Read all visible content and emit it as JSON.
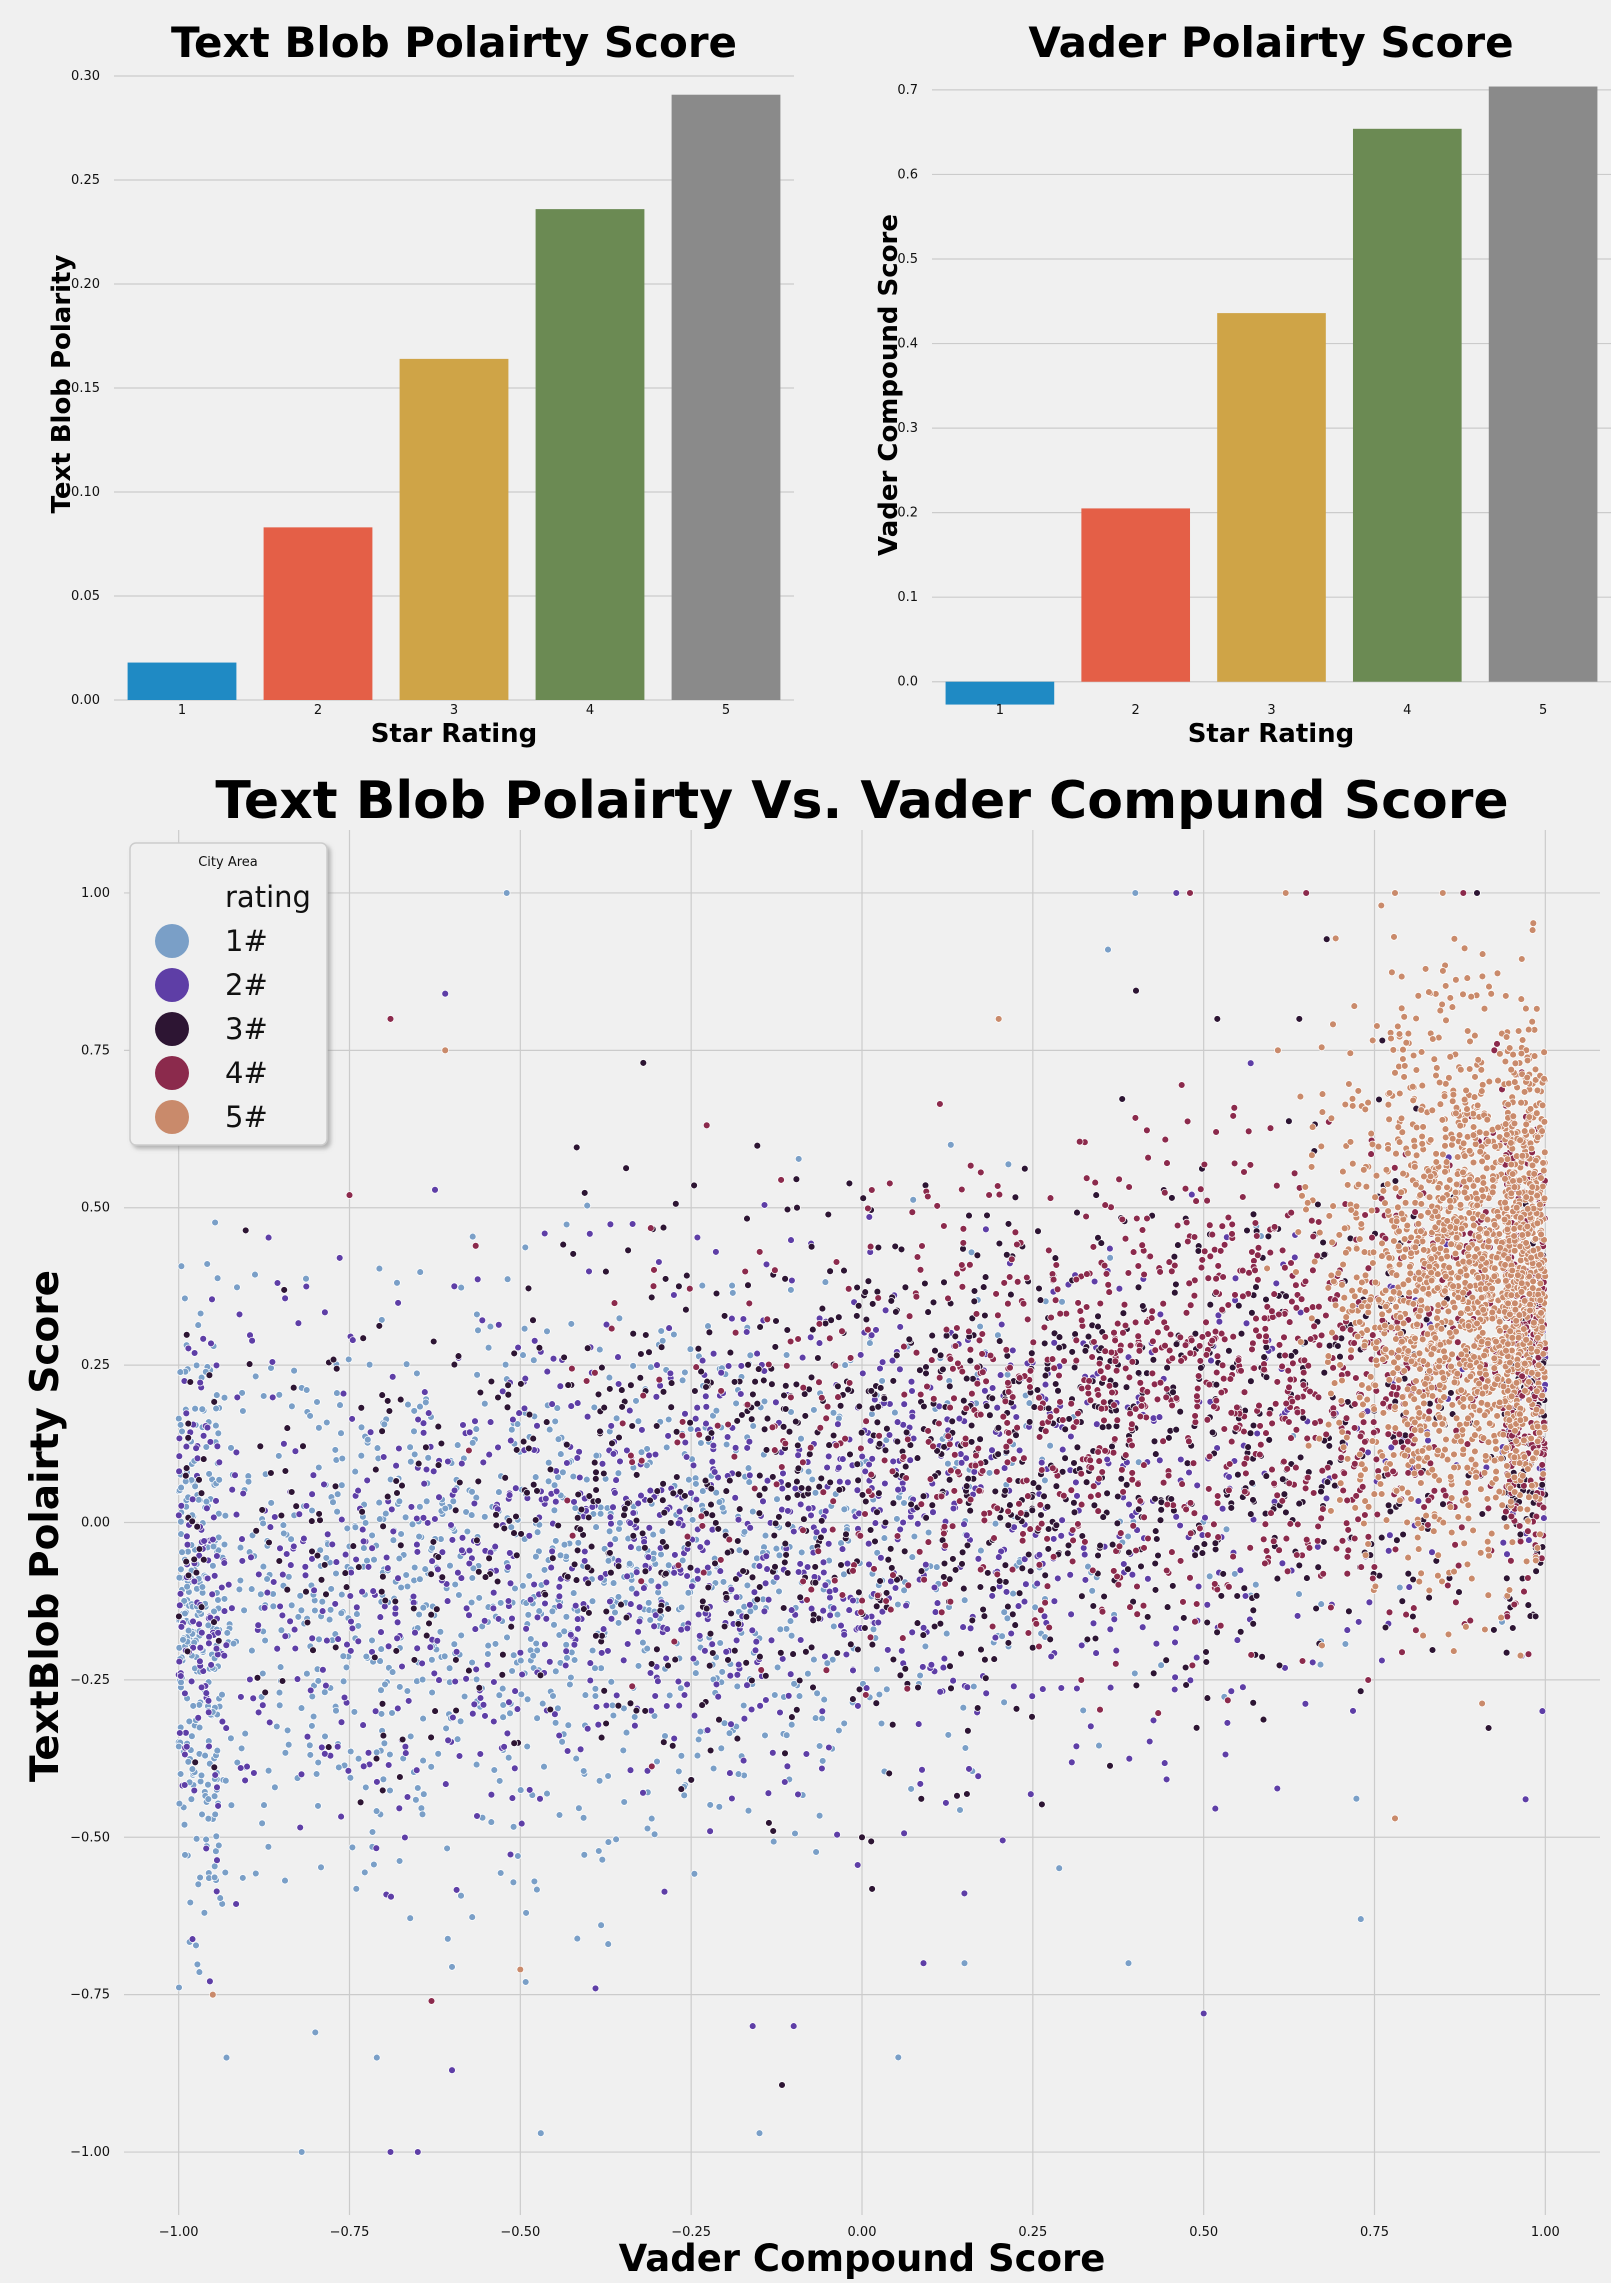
{
  "chart_data": [
    {
      "type": "bar",
      "title": "Text Blob Polairty Score",
      "xlabel": "Star Rating",
      "ylabel": "Text Blob Polarity",
      "categories": [
        "1",
        "2",
        "3",
        "4",
        "5"
      ],
      "values": [
        0.018,
        0.083,
        0.164,
        0.236,
        0.291
      ],
      "colors": [
        "#1f8ac4",
        "#e45f47",
        "#cfa447",
        "#6b8a53",
        "#8a8a8a"
      ],
      "ylim": [
        0,
        0.3
      ],
      "yticks": [
        "0.00",
        "0.05",
        "0.10",
        "0.15",
        "0.20",
        "0.25",
        "0.30"
      ],
      "grid": true
    },
    {
      "type": "bar",
      "title": "Vader Polairty Score",
      "xlabel": "Star Rating",
      "ylabel": "Vader Compound Score",
      "categories": [
        "1",
        "2",
        "3",
        "4",
        "5"
      ],
      "values": [
        -0.027,
        0.205,
        0.436,
        0.654,
        0.704
      ],
      "colors": [
        "#1f8ac4",
        "#e45f47",
        "#cfa447",
        "#6b8a53",
        "#8a8a8a"
      ],
      "ylim": [
        -0.05,
        0.72
      ],
      "yticks": [
        "0.0",
        "0.1",
        "0.2",
        "0.3",
        "0.4",
        "0.5",
        "0.6",
        "0.7"
      ],
      "grid": true
    },
    {
      "type": "scatter",
      "title": "Text Blob Polairty Vs. Vader Compund Score",
      "xlabel": "Vader Compound Score",
      "ylabel": "TextBlob Polairty Score",
      "xlim": [
        -1.08,
        1.08
      ],
      "ylim": [
        -1.1,
        1.1
      ],
      "xticks": [
        "−1.00",
        "−0.75",
        "−0.50",
        "−0.25",
        "0.00",
        "0.25",
        "0.50",
        "0.75",
        "1.00"
      ],
      "yticks": [
        "−1.00",
        "−0.75",
        "−0.50",
        "−0.25",
        "0.00",
        "0.25",
        "0.50",
        "0.75",
        "1.00"
      ],
      "legend": {
        "title": "City Area",
        "subtitle": "rating",
        "placement": "top-left",
        "entries": [
          "1#",
          "2#",
          "3#",
          "4#",
          "5#"
        ],
        "colors": [
          "#7a9fc7",
          "#5e3ea6",
          "#2d1533",
          "#8b2a4c",
          "#c98a6b"
        ]
      },
      "series": [
        {
          "name": "1#",
          "color": "#7a9fc7",
          "x_center": -0.55,
          "x_spread": 0.45,
          "y_center": -0.05,
          "y_spread": 0.22,
          "count": 1400,
          "points": [
            [
              -0.52,
              1.0
            ],
            [
              0.4,
              1.0
            ],
            [
              0.36,
              0.91
            ],
            [
              0.13,
              0.6
            ],
            [
              -0.15,
              -0.97
            ],
            [
              -0.82,
              -1.0
            ],
            [
              -0.47,
              -0.97
            ],
            [
              0.39,
              -0.7
            ],
            [
              0.15,
              -0.7
            ],
            [
              -0.93,
              -0.85
            ],
            [
              -0.71,
              -0.85
            ],
            [
              -0.8,
              -0.81
            ],
            [
              0.73,
              -0.63
            ]
          ]
        },
        {
          "name": "2#",
          "color": "#5e3ea6",
          "x_center": -0.2,
          "x_spread": 0.55,
          "y_center": 0.0,
          "y_spread": 0.2,
          "count": 1400,
          "points": [
            [
              -0.61,
              0.84
            ],
            [
              -0.39,
              -0.74
            ],
            [
              -0.16,
              -0.8
            ],
            [
              -0.1,
              -0.8
            ],
            [
              0.09,
              -0.7
            ],
            [
              0.5,
              -0.78
            ],
            [
              -0.69,
              -1.0
            ],
            [
              -0.65,
              -1.0
            ],
            [
              -0.6,
              -0.87
            ],
            [
              0.46,
              1.0
            ],
            [
              0.9,
              1.0
            ]
          ]
        },
        {
          "name": "3#",
          "color": "#2d1533",
          "x_center": 0.2,
          "x_spread": 0.55,
          "y_center": 0.08,
          "y_spread": 0.2,
          "count": 1400,
          "points": [
            [
              -0.32,
              0.73
            ],
            [
              -0.13,
              -0.49
            ],
            [
              0.0,
              -0.5
            ],
            [
              0.9,
              1.0
            ],
            [
              0.52,
              0.8
            ],
            [
              0.64,
              0.8
            ]
          ]
        },
        {
          "name": "4#",
          "color": "#8b2a4c",
          "x_center": 0.6,
          "x_spread": 0.4,
          "y_center": 0.15,
          "y_spread": 0.18,
          "count": 1500,
          "points": [
            [
              -0.69,
              0.8
            ],
            [
              -0.75,
              0.52
            ],
            [
              -0.63,
              -0.76
            ],
            [
              0.48,
              1.0
            ],
            [
              0.88,
              1.0
            ],
            [
              0.65,
              1.0
            ]
          ]
        },
        {
          "name": "5#",
          "color": "#c98a6b",
          "x_center": 0.9,
          "x_spread": 0.1,
          "y_center": 0.28,
          "y_spread": 0.2,
          "count": 2000,
          "points": [
            [
              -0.61,
              0.75
            ],
            [
              -0.5,
              -0.71
            ],
            [
              -0.95,
              -0.75
            ],
            [
              0.78,
              -0.47
            ],
            [
              0.2,
              0.8
            ],
            [
              0.76,
              0.98
            ],
            [
              0.62,
              1.0
            ],
            [
              0.78,
              1.0
            ],
            [
              0.85,
              1.0
            ]
          ]
        }
      ]
    }
  ]
}
